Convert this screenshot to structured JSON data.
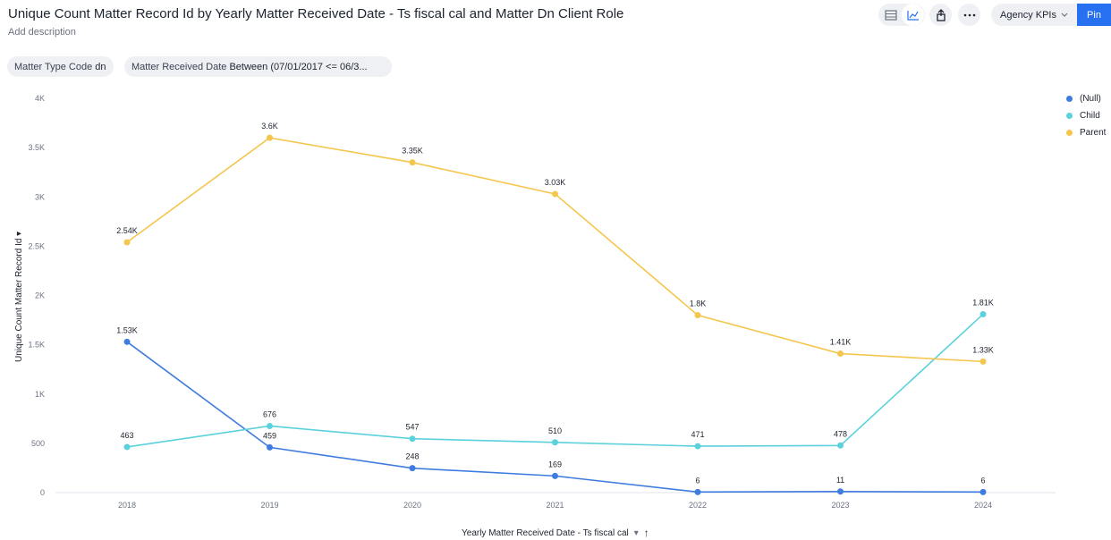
{
  "header": {
    "title": "Unique Count Matter Record Id by Yearly Matter Received Date - Ts fiscal cal and Matter Dn Client Role",
    "description": "Add description"
  },
  "toolbar": {
    "table_icon": "table-icon",
    "chart_icon": "line-chart-icon",
    "share_icon": "share-icon",
    "more_icon": "more-icon",
    "liveboard_select": "Agency KPIs",
    "pin_label": "Pin",
    "accent": "#2770ef"
  },
  "filters": {
    "chip1_label": "Matter Type Code",
    "chip1_value": "dn",
    "chip2_label": "Matter Received Date",
    "chip2_value": "Between (07/01/2017 <= 06/3..."
  },
  "chart_data": {
    "type": "line",
    "x": [
      "2018",
      "2019",
      "2020",
      "2021",
      "2022",
      "2023",
      "2024"
    ],
    "xlabel": "Yearly Matter Received Date - Ts fiscal cal",
    "ylabel": "Unique Count Matter Record Id",
    "ylim": [
      0,
      4000
    ],
    "yticks": [
      0,
      500,
      1000,
      1500,
      2000,
      2500,
      3000,
      3500,
      4000
    ],
    "ytick_labels": [
      "0",
      "500",
      "1K",
      "1.5K",
      "2K",
      "2.5K",
      "3K",
      "3.5K",
      "4K"
    ],
    "grid": false,
    "legend_position": "top-right",
    "series": [
      {
        "name": "(Null)",
        "color": "#3f7ce0",
        "values": [
          1530,
          459,
          248,
          169,
          6,
          11,
          6
        ],
        "labels": [
          "1.53K",
          "459",
          "248",
          "169",
          "6",
          "11",
          "6"
        ]
      },
      {
        "name": "Child",
        "color": "#5bd1dc",
        "values": [
          463,
          676,
          547,
          510,
          471,
          478,
          1810
        ],
        "labels": [
          "463",
          "676",
          "547",
          "510",
          "471",
          "478",
          "1.81K"
        ]
      },
      {
        "name": "Parent",
        "color": "#f5c64d",
        "values": [
          2540,
          3600,
          3350,
          3030,
          1800,
          1410,
          1330
        ],
        "labels": [
          "2.54K",
          "3.6K",
          "3.35K",
          "3.03K",
          "1.8K",
          "1.41K",
          "1.33K"
        ]
      }
    ]
  }
}
